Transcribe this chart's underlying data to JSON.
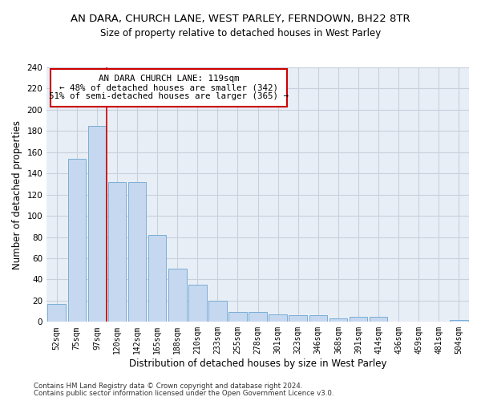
{
  "title1": "AN DARA, CHURCH LANE, WEST PARLEY, FERNDOWN, BH22 8TR",
  "title2": "Size of property relative to detached houses in West Parley",
  "xlabel": "Distribution of detached houses by size in West Parley",
  "ylabel": "Number of detached properties",
  "bar_color": "#c5d8ef",
  "bar_edge_color": "#7aaed6",
  "background_color": "#e8eef6",
  "categories": [
    "52sqm",
    "75sqm",
    "97sqm",
    "120sqm",
    "142sqm",
    "165sqm",
    "188sqm",
    "210sqm",
    "233sqm",
    "255sqm",
    "278sqm",
    "301sqm",
    "323sqm",
    "346sqm",
    "368sqm",
    "391sqm",
    "414sqm",
    "436sqm",
    "459sqm",
    "481sqm",
    "504sqm"
  ],
  "values": [
    17,
    154,
    185,
    132,
    132,
    82,
    50,
    35,
    20,
    9,
    9,
    7,
    6,
    6,
    3,
    5,
    5,
    0,
    0,
    0,
    2
  ],
  "ylim": [
    0,
    240
  ],
  "yticks": [
    0,
    20,
    40,
    60,
    80,
    100,
    120,
    140,
    160,
    180,
    200,
    220,
    240
  ],
  "property_label": "AN DARA CHURCH LANE: 119sqm",
  "annotation_line1": "← 48% of detached houses are smaller (342)",
  "annotation_line2": "51% of semi-detached houses are larger (365) →",
  "vline_x_index": 2.5,
  "footer_line1": "Contains HM Land Registry data © Crown copyright and database right 2024.",
  "footer_line2": "Contains public sector information licensed under the Open Government Licence v3.0.",
  "grid_color": "#c8d0dc",
  "vline_color": "#cc0000",
  "box_edge_color": "#cc0000"
}
